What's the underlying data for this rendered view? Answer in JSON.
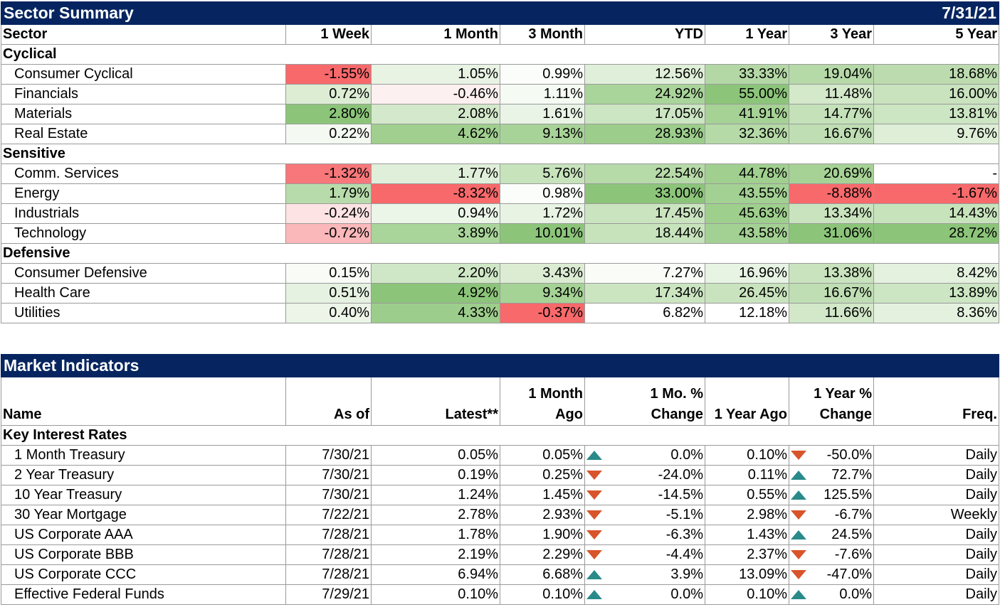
{
  "sector": {
    "title": "Sector Summary",
    "date": "7/31/21",
    "headers": [
      "Sector",
      "1 Week",
      "1 Month",
      "3 Month",
      "YTD",
      "1 Year",
      "3 Year",
      "5 Year"
    ],
    "groups": [
      {
        "name": "Cyclical",
        "rows": [
          {
            "name": "Consumer Cyclical",
            "values": [
              "-1.55%",
              "1.05%",
              "0.99%",
              "12.56%",
              "33.33%",
              "19.04%",
              "18.68%"
            ],
            "colors": [
              "#f8696b",
              "#e8f3e4",
              "#fbfdfa",
              "#e0efd9",
              "#b3d8a5",
              "#b6d9a8",
              "#bcdcaf"
            ]
          },
          {
            "name": "Financials",
            "values": [
              "0.72%",
              "-0.46%",
              "1.11%",
              "24.92%",
              "55.00%",
              "11.48%",
              "16.00%"
            ],
            "colors": [
              "#dcedd4",
              "#fdf0f0",
              "#f5faf3",
              "#a9d49a",
              "#8cc57a",
              "#d3e9ca",
              "#c9e3bf"
            ]
          },
          {
            "name": "Materials",
            "values": [
              "2.80%",
              "2.08%",
              "1.61%",
              "17.05%",
              "41.91%",
              "14.77%",
              "13.81%"
            ],
            "colors": [
              "#8cc57a",
              "#d4e9cb",
              "#e9f4e6",
              "#cce5c2",
              "#a6d296",
              "#c4e1b9",
              "#cce5c2"
            ]
          },
          {
            "name": "Real Estate",
            "values": [
              "0.22%",
              "4.62%",
              "9.13%",
              "28.93%",
              "32.36%",
              "16.67%",
              "9.76%"
            ],
            "colors": [
              "#f4f9f2",
              "#a0cf8f",
              "#a8d398",
              "#9ccd8b",
              "#b5d9a7",
              "#bfdeb4",
              "#deeed7"
            ]
          }
        ]
      },
      {
        "name": "Sensitive",
        "rows": [
          {
            "name": "Comm. Services",
            "values": [
              "-1.32%",
              "1.77%",
              "5.76%",
              "22.54%",
              "44.78%",
              "20.69%",
              "-"
            ],
            "colors": [
              "#f8777a",
              "#e0efda",
              "#c7e3bc",
              "#b7daa9",
              "#a0cf8f",
              "#a6d296",
              "#ffffff"
            ]
          },
          {
            "name": "Energy",
            "values": [
              "1.79%",
              "-8.32%",
              "0.98%",
              "33.00%",
              "43.55%",
              "-8.88%",
              "-1.67%"
            ],
            "colors": [
              "#b8dbab",
              "#f8696b",
              "#fbfdfa",
              "#8cc57a",
              "#a3d193",
              "#f8696b",
              "#f8696b"
            ]
          },
          {
            "name": "Industrials",
            "values": [
              "-0.24%",
              "0.94%",
              "1.72%",
              "17.45%",
              "45.63%",
              "13.34%",
              "14.43%"
            ],
            "colors": [
              "#fde3e3",
              "#ebf5e8",
              "#e8f3e4",
              "#cae4c0",
              "#9ecf8d",
              "#c8e3bd",
              "#c7e3bc"
            ]
          },
          {
            "name": "Technology",
            "values": [
              "-0.72%",
              "3.89%",
              "10.01%",
              "18.44%",
              "43.58%",
              "31.06%",
              "28.72%"
            ],
            "colors": [
              "#fbb8ba",
              "#a9d49a",
              "#8cc57a",
              "#c7e3bc",
              "#a3d193",
              "#8cc57a",
              "#8cc57a"
            ]
          }
        ]
      },
      {
        "name": "Defensive",
        "rows": [
          {
            "name": "Consumer Defensive",
            "values": [
              "0.15%",
              "2.20%",
              "3.43%",
              "7.27%",
              "16.96%",
              "13.38%",
              "8.42%"
            ],
            "colors": [
              "#f8fbf6",
              "#cfe7c6",
              "#dbecd3",
              "#fafcf8",
              "#e7f3e3",
              "#c8e3bd",
              "#e4f1df"
            ]
          },
          {
            "name": "Health Care",
            "values": [
              "0.51%",
              "4.92%",
              "9.34%",
              "17.34%",
              "26.45%",
              "16.67%",
              "13.89%"
            ],
            "colors": [
              "#e6f2e1",
              "#8cc57a",
              "#a5d295",
              "#cbe5c1",
              "#c9e3be",
              "#bfdeb4",
              "#cce5c2"
            ]
          },
          {
            "name": "Utilities",
            "values": [
              "0.40%",
              "4.33%",
              "-0.37%",
              "6.82%",
              "12.18%",
              "11.66%",
              "8.36%"
            ],
            "colors": [
              "#ecf5e8",
              "#9dcd8c",
              "#f8696b",
              "#ffffff",
              "#ffffff",
              "#d2e8c9",
              "#e4f1df"
            ]
          }
        ]
      }
    ]
  },
  "market": {
    "title": "Market Indicators",
    "headers": {
      "name": "Name",
      "as_of": "As of",
      "latest": "Latest**",
      "month_ago_1": "1 Month",
      "month_ago_2": "Ago",
      "mo_change_1": "1 Mo. %",
      "mo_change_2": "Change",
      "year_ago": "1 Year Ago",
      "yr_change_1": "1 Year %",
      "yr_change_2": "Change",
      "freq": "Freq."
    },
    "group": "Key Interest Rates",
    "rows": [
      {
        "name": "1 Month Treasury",
        "as_of": "7/30/21",
        "latest": "0.05%",
        "month_ago": "0.05%",
        "mo_dir": "up",
        "mo_change": "0.0%",
        "year_ago": "0.10%",
        "yr_dir": "down",
        "yr_change": "-50.0%",
        "freq": "Daily"
      },
      {
        "name": "2 Year Treasury",
        "as_of": "7/30/21",
        "latest": "0.19%",
        "month_ago": "0.25%",
        "mo_dir": "down",
        "mo_change": "-24.0%",
        "year_ago": "0.11%",
        "yr_dir": "up",
        "yr_change": "72.7%",
        "freq": "Daily"
      },
      {
        "name": "10 Year Treasury",
        "as_of": "7/30/21",
        "latest": "1.24%",
        "month_ago": "1.45%",
        "mo_dir": "down",
        "mo_change": "-14.5%",
        "year_ago": "0.55%",
        "yr_dir": "up",
        "yr_change": "125.5%",
        "freq": "Daily"
      },
      {
        "name": "30 Year Mortgage",
        "as_of": "7/22/21",
        "latest": "2.78%",
        "month_ago": "2.93%",
        "mo_dir": "down",
        "mo_change": "-5.1%",
        "year_ago": "2.98%",
        "yr_dir": "down",
        "yr_change": "-6.7%",
        "freq": "Weekly"
      },
      {
        "name": "US Corporate AAA",
        "as_of": "7/28/21",
        "latest": "1.78%",
        "month_ago": "1.90%",
        "mo_dir": "down",
        "mo_change": "-6.3%",
        "year_ago": "1.43%",
        "yr_dir": "up",
        "yr_change": "24.5%",
        "freq": "Daily"
      },
      {
        "name": "US Corporate BBB",
        "as_of": "7/28/21",
        "latest": "2.19%",
        "month_ago": "2.29%",
        "mo_dir": "down",
        "mo_change": "-4.4%",
        "year_ago": "2.37%",
        "yr_dir": "down",
        "yr_change": "-7.6%",
        "freq": "Daily"
      },
      {
        "name": "US Corporate CCC",
        "as_of": "7/28/21",
        "latest": "6.94%",
        "month_ago": "6.68%",
        "mo_dir": "up",
        "mo_change": "3.9%",
        "year_ago": "13.09%",
        "yr_dir": "down",
        "yr_change": "-47.0%",
        "freq": "Daily"
      },
      {
        "name": "Effective Federal Funds",
        "as_of": "7/29/21",
        "latest": "0.10%",
        "month_ago": "0.10%",
        "mo_dir": "up",
        "mo_change": "0.0%",
        "year_ago": "0.10%",
        "yr_dir": "up",
        "yr_change": "0.0%",
        "freq": "Daily"
      }
    ]
  },
  "colors": {
    "banner": "#062560",
    "arrow_up": "#2a8a8a",
    "arrow_down": "#d8542b"
  }
}
